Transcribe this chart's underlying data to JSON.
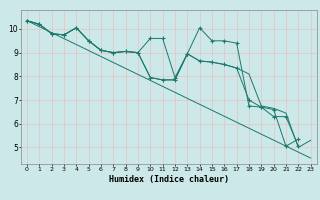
{
  "xlabel": "Humidex (Indice chaleur)",
  "bg_color": "#cce8e8",
  "grid_color": "#ffffff",
  "line_color": "#1a7a6e",
  "xlim": [
    -0.5,
    23.5
  ],
  "ylim": [
    4.3,
    10.8
  ],
  "yticks": [
    5,
    6,
    7,
    8,
    9,
    10
  ],
  "xticks": [
    0,
    1,
    2,
    3,
    4,
    5,
    6,
    7,
    8,
    9,
    10,
    11,
    12,
    13,
    14,
    15,
    16,
    17,
    18,
    19,
    20,
    21,
    22,
    23
  ],
  "series": [
    {
      "x": [
        0,
        1,
        2,
        3,
        4,
        5,
        6,
        7,
        8,
        9,
        10,
        11,
        12,
        13,
        14,
        15,
        16,
        17,
        18,
        19,
        20,
        21,
        22
      ],
      "y": [
        10.35,
        10.2,
        9.8,
        9.75,
        10.05,
        9.5,
        9.1,
        9.0,
        9.05,
        9.0,
        9.6,
        9.6,
        7.95,
        8.95,
        10.05,
        9.5,
        9.5,
        9.4,
        6.75,
        6.7,
        6.6,
        5.05,
        5.35
      ],
      "marker": true
    },
    {
      "x": [
        0,
        1,
        2,
        3,
        4,
        5,
        6,
        7,
        8,
        9,
        10,
        11,
        12,
        13,
        14,
        15,
        16,
        17,
        18,
        19,
        20,
        21,
        22
      ],
      "y": [
        10.35,
        10.2,
        9.8,
        9.75,
        10.05,
        9.5,
        9.1,
        9.0,
        9.05,
        9.0,
        7.95,
        7.85,
        7.85,
        8.95,
        8.65,
        8.6,
        8.5,
        8.35,
        7.0,
        6.7,
        6.3,
        6.3,
        5.05
      ],
      "marker": true
    },
    {
      "x": [
        0,
        1,
        2,
        3,
        4,
        5,
        6,
        7,
        8,
        9,
        10,
        11,
        12,
        13,
        14,
        15,
        16,
        17,
        18,
        19,
        20,
        21,
        22,
        23
      ],
      "y": [
        10.35,
        10.2,
        9.8,
        9.75,
        10.05,
        9.5,
        9.1,
        9.0,
        9.05,
        9.0,
        7.95,
        7.85,
        7.85,
        8.95,
        8.65,
        8.6,
        8.5,
        8.35,
        8.1,
        6.75,
        6.65,
        6.45,
        5.0,
        5.3
      ],
      "marker": false
    },
    {
      "x": [
        0,
        23
      ],
      "y": [
        10.35,
        4.55
      ],
      "marker": false
    }
  ]
}
